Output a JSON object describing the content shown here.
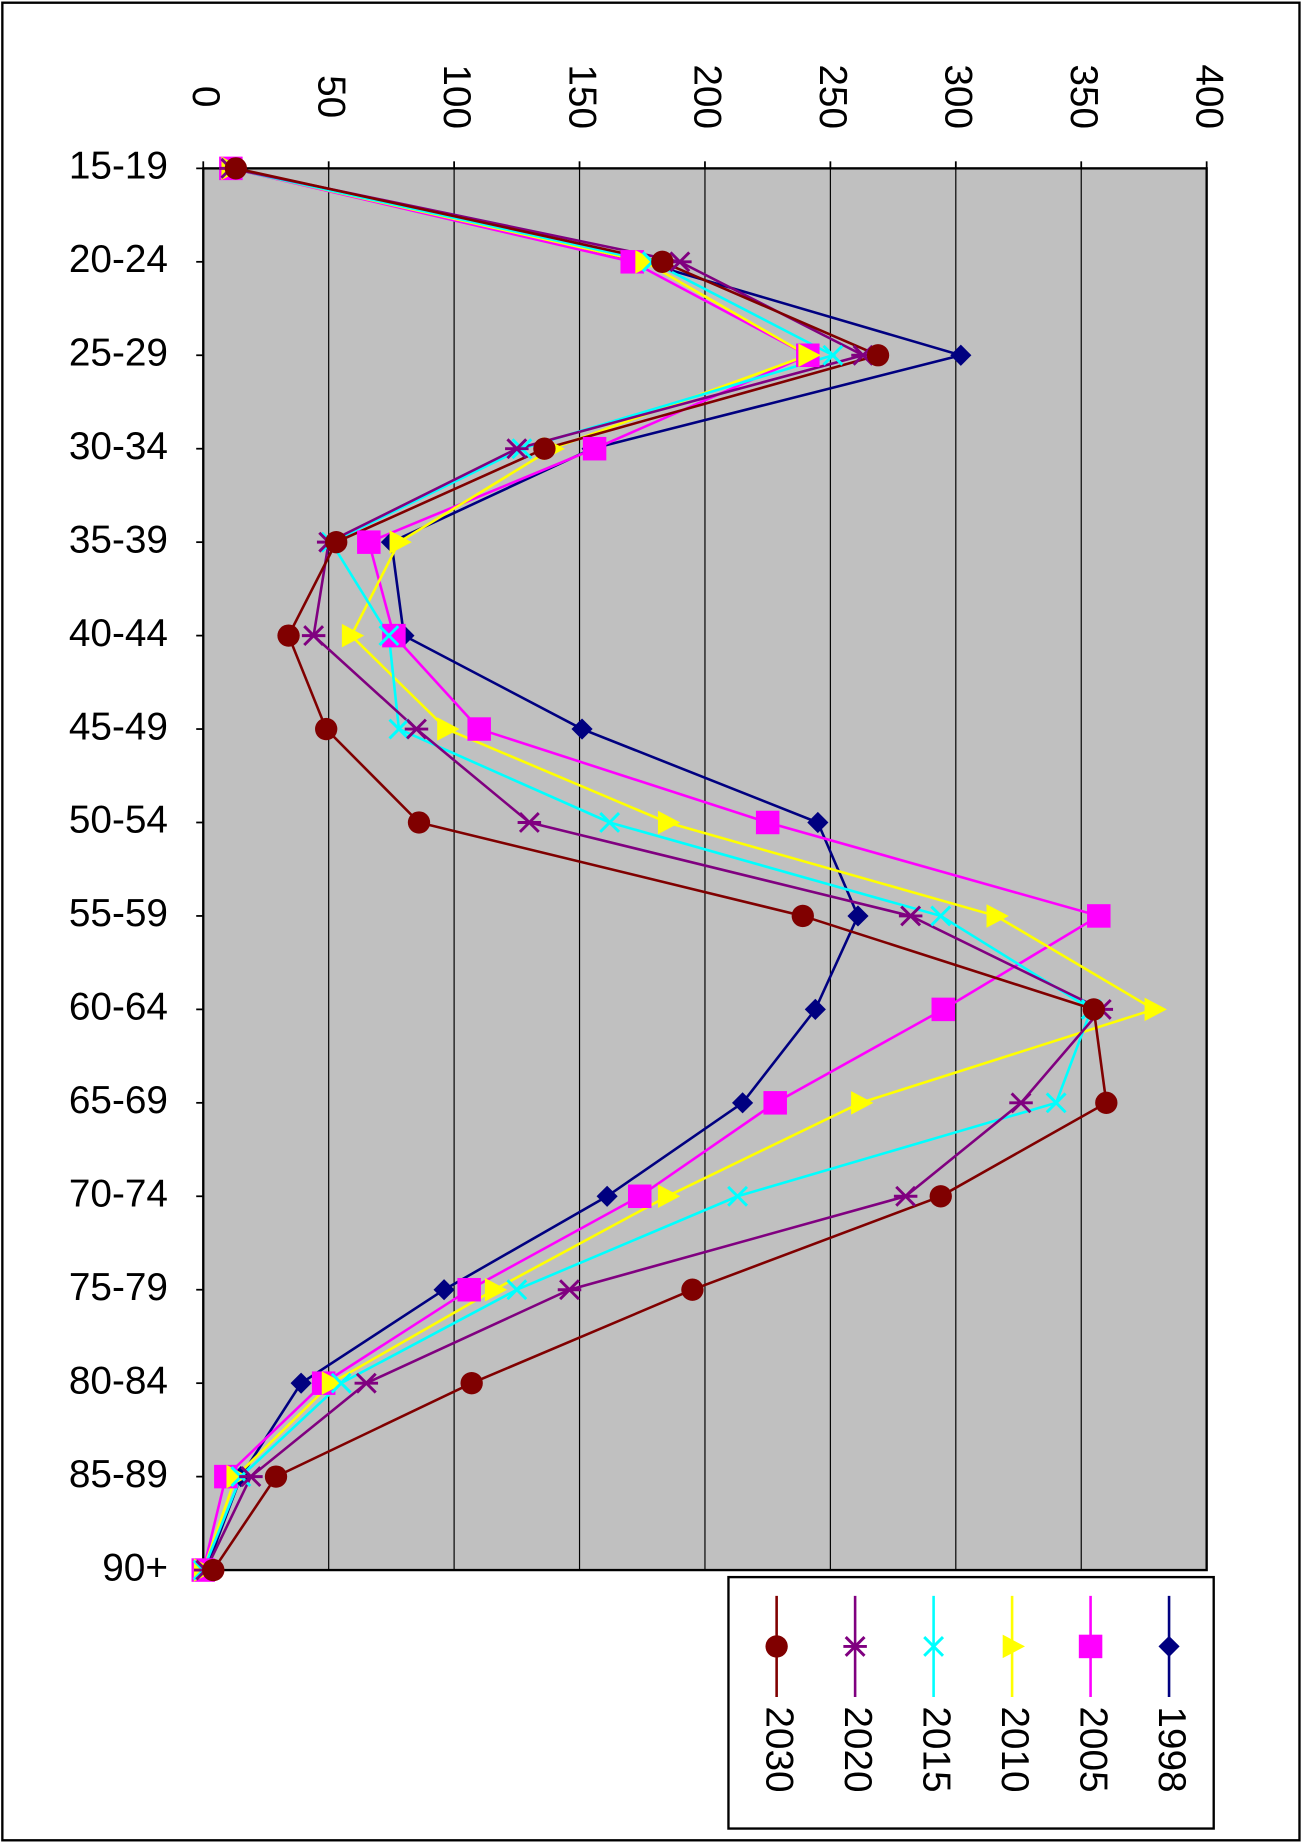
{
  "chart_data": {
    "type": "line",
    "orientation": "horizontal",
    "categories": [
      "15-19",
      "20-24",
      "25-29",
      "30-34",
      "35-39",
      "40-44",
      "45-49",
      "50-54",
      "55-59",
      "60-64",
      "65-69",
      "70-74",
      "75-79",
      "80-84",
      "85-89",
      "90+"
    ],
    "xlim": [
      0,
      400
    ],
    "xticks": [
      0,
      50,
      100,
      150,
      200,
      250,
      300,
      350,
      400
    ],
    "grid": true,
    "legend": "bottom-right",
    "series": [
      {
        "name": "1998",
        "color": "#000080",
        "marker": "diamond",
        "values": [
          12,
          175,
          302,
          155,
          75,
          80,
          151,
          245,
          261,
          244,
          215,
          161,
          96,
          39,
          15,
          1
        ]
      },
      {
        "name": "2005",
        "color": "#ff00ff",
        "marker": "square",
        "values": [
          11,
          171,
          241,
          156,
          66,
          76,
          110,
          225,
          357,
          295,
          228,
          174,
          106,
          48,
          9,
          0
        ]
      },
      {
        "name": "2010",
        "color": "#ffff00",
        "marker": "triangle",
        "values": [
          11,
          176,
          241,
          139,
          78,
          59,
          97,
          185,
          316,
          379,
          262,
          185,
          116,
          51,
          13,
          0
        ]
      },
      {
        "name": "2015",
        "color": "#00ffff",
        "marker": "x",
        "values": [
          11,
          179,
          251,
          127,
          51,
          74,
          78,
          162,
          294,
          354,
          340,
          213,
          125,
          55,
          15,
          0
        ]
      },
      {
        "name": "2020",
        "color": "#800080",
        "marker": "star",
        "values": [
          11,
          190,
          263,
          125,
          50,
          44,
          85,
          130,
          282,
          358,
          326,
          280,
          146,
          65,
          19,
          1
        ]
      },
      {
        "name": "2030",
        "color": "#800000",
        "marker": "circle",
        "values": [
          13,
          183,
          269,
          136,
          53,
          34,
          49,
          86,
          239,
          355,
          360,
          294,
          195,
          107,
          29,
          4
        ]
      }
    ]
  }
}
